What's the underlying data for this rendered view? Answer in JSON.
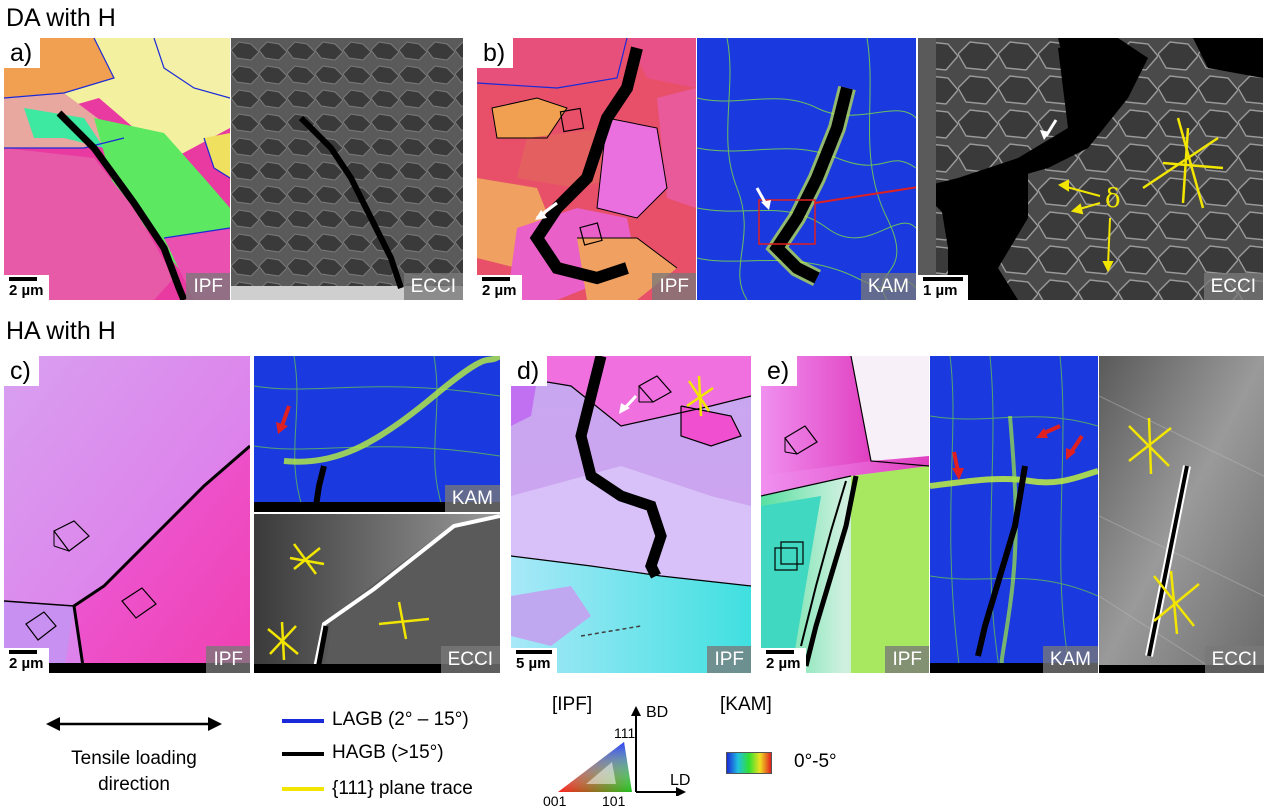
{
  "sections": {
    "da_title": "DA with H",
    "ha_title": "HA with H"
  },
  "panels": {
    "a": {
      "tag": "a)",
      "scale": "2 µm",
      "ipf_label": "IPF",
      "ecci_label": "ECCI"
    },
    "b": {
      "tag": "b)",
      "scale": "2 µm",
      "ipf_label": "IPF",
      "kam_label": "KAM",
      "ecci_scale": "1 µm",
      "ecci_label": "ECCI",
      "delta": "δ"
    },
    "c": {
      "tag": "c)",
      "scale": "2 µm",
      "ipf_label": "IPF",
      "kam_label": "KAM",
      "ecci_label": "ECCI"
    },
    "d": {
      "tag": "d)",
      "scale": "5 µm",
      "ipf_label": "IPF"
    },
    "e": {
      "tag": "e)",
      "scale": "2 µm",
      "ipf_label": "IPF",
      "kam_label": "KAM",
      "ecci_label": "ECCI"
    }
  },
  "legend": {
    "tensile_line1": "Tensile loading",
    "tensile_line2": "direction",
    "lagb": "LAGB (2° – 15°)",
    "hagb": "HAGB (>15°)",
    "plane_trace": "{111} plane trace",
    "ipf_heading": "[IPF]",
    "ipf_111": "111",
    "ipf_001": "001",
    "ipf_101": "101",
    "bd": "BD",
    "ld": "LD",
    "kam_heading": "[KAM]",
    "kam_range": "0°-5°"
  },
  "colors": {
    "lagb": "#1a2ad8",
    "hagb": "#000000",
    "plane_trace": "#f2e600",
    "arrow_red": "#e02020",
    "kam_base": "#1a3ae0",
    "kam_high": "#9be020"
  }
}
